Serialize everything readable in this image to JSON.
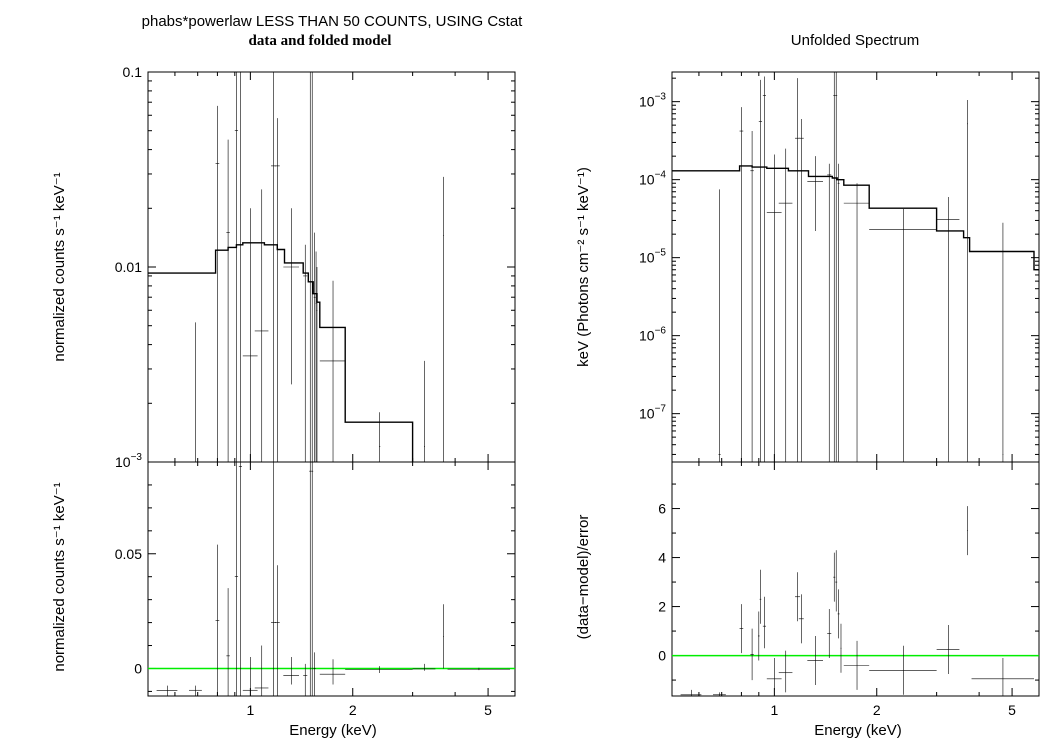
{
  "left": {
    "title": "phabs*powerlaw LESS THAN 50 COUNTS, USING Cstat",
    "subtitle": "data and folded model",
    "top_ylabel": "normalized counts s⁻¹ keV⁻¹",
    "bottom_ylabel": "normalized counts s⁻¹ keV⁻¹",
    "xlabel": "Energy (keV)"
  },
  "right": {
    "title": "Unfolded Spectrum",
    "top_ylabel": "keV (Photons cm⁻² s⁻¹ keV⁻¹)",
    "bottom_ylabel": "(data−model)/error",
    "xlabel": "Energy (keV)"
  },
  "chart_data": [
    {
      "type": "scatter",
      "panel": "left-top",
      "title": "phabs*powerlaw LESS THAN 50 COUNTS, USING Cstat",
      "subtitle": "data and folded model",
      "xlabel": "",
      "ylabel": "normalized counts s⁻¹ keV⁻¹",
      "xscale": "log",
      "yscale": "log",
      "xlim": [
        0.5,
        6.0
      ],
      "ylim": [
        0.001,
        0.1
      ],
      "yticks": [
        {
          "v": 0.1,
          "label": "0.1"
        },
        {
          "v": 0.01,
          "label": "0.01"
        },
        {
          "v": 0.001,
          "label": "10",
          "sup": "−3"
        }
      ],
      "points": [
        {
          "x": 0.69,
          "x0": 0.685,
          "x1": 0.695,
          "y": 0.0009,
          "ylo": 0.0005,
          "yhi": 0.0052
        },
        {
          "x": 0.8,
          "x0": 0.79,
          "x1": 0.81,
          "y": 0.034,
          "ylo": 0.0005,
          "yhi": 0.067
        },
        {
          "x": 0.86,
          "x0": 0.85,
          "x1": 0.87,
          "y": 0.015,
          "ylo": 0.0005,
          "yhi": 0.045
        },
        {
          "x": 0.91,
          "x0": 0.9,
          "x1": 0.92,
          "y": 0.05,
          "ylo": 0.0005,
          "yhi": 0.1
        },
        {
          "x": 0.935,
          "x0": 0.925,
          "x1": 0.945,
          "y": 0.1,
          "ylo": 0.0005,
          "yhi": 0.12
        },
        {
          "x": 1.0,
          "x0": 0.95,
          "x1": 1.05,
          "y": 0.0035,
          "ylo": 0.0005,
          "yhi": 0.02
        },
        {
          "x": 1.08,
          "x0": 1.03,
          "x1": 1.13,
          "y": 0.0047,
          "ylo": 0.0005,
          "yhi": 0.025
        },
        {
          "x": 1.17,
          "x0": 1.15,
          "x1": 1.19,
          "y": 0.033,
          "ylo": 0.0005,
          "yhi": 0.1
        },
        {
          "x": 1.2,
          "x0": 1.18,
          "x1": 1.22,
          "y": 0.033,
          "ylo": 0.0005,
          "yhi": 0.058
        },
        {
          "x": 1.32,
          "x0": 1.25,
          "x1": 1.39,
          "y": 0.01,
          "ylo": 0.0025,
          "yhi": 0.02
        },
        {
          "x": 1.45,
          "x0": 1.43,
          "x1": 1.47,
          "y": 0.009,
          "ylo": 0.0005,
          "yhi": 0.013
        },
        {
          "x": 1.5,
          "x0": 1.49,
          "x1": 1.51,
          "y": 0.1,
          "ylo": 0.0005,
          "yhi": 0.12
        },
        {
          "x": 1.52,
          "x0": 1.51,
          "x1": 1.53,
          "y": 0.1,
          "ylo": 0.0005,
          "yhi": 0.12
        },
        {
          "x": 1.545,
          "x0": 1.535,
          "x1": 1.555,
          "y": 0.007,
          "ylo": 0.0005,
          "yhi": 0.015
        },
        {
          "x": 1.56,
          "x0": 1.555,
          "x1": 1.565,
          "y": 0.0065,
          "ylo": 0.0005,
          "yhi": 0.012
        },
        {
          "x": 1.57,
          "x0": 1.565,
          "x1": 1.575,
          "y": 0.006,
          "ylo": 0.0005,
          "yhi": 0.01
        },
        {
          "x": 1.75,
          "x0": 1.6,
          "x1": 1.9,
          "y": 0.0033,
          "ylo": 0.0005,
          "yhi": 0.0085
        },
        {
          "x": 2.4,
          "x0": 2.39,
          "x1": 2.41,
          "y": 0.0012,
          "ylo": 0.0005,
          "yhi": 0.0018
        },
        {
          "x": 3.25,
          "x0": 3.24,
          "x1": 3.26,
          "y": 0.0012,
          "ylo": 0.0005,
          "yhi": 0.0033
        },
        {
          "x": 3.7,
          "x0": 3.69,
          "x1": 3.71,
          "y": 0.0145,
          "ylo": 0.0005,
          "yhi": 0.029
        }
      ],
      "model_steps": [
        [
          0.5,
          0.0093
        ],
        [
          0.79,
          0.0093
        ],
        [
          0.79,
          0.0122
        ],
        [
          0.86,
          0.0122
        ],
        [
          0.86,
          0.0126
        ],
        [
          0.91,
          0.0126
        ],
        [
          0.91,
          0.013
        ],
        [
          0.95,
          0.013
        ],
        [
          0.95,
          0.0133
        ],
        [
          1.1,
          0.0133
        ],
        [
          1.1,
          0.013
        ],
        [
          1.2,
          0.013
        ],
        [
          1.2,
          0.0123
        ],
        [
          1.26,
          0.0123
        ],
        [
          1.26,
          0.0105
        ],
        [
          1.43,
          0.0105
        ],
        [
          1.43,
          0.0093
        ],
        [
          1.48,
          0.0093
        ],
        [
          1.48,
          0.0084
        ],
        [
          1.53,
          0.0084
        ],
        [
          1.53,
          0.0073
        ],
        [
          1.57,
          0.0073
        ],
        [
          1.57,
          0.0066
        ],
        [
          1.6,
          0.0066
        ],
        [
          1.6,
          0.0049
        ],
        [
          1.9,
          0.0049
        ],
        [
          1.9,
          0.0016
        ],
        [
          3.0,
          0.0016
        ],
        [
          3.0,
          0.0009
        ]
      ]
    },
    {
      "type": "scatter",
      "panel": "left-bottom",
      "xlabel": "Energy (keV)",
      "ylabel": "normalized counts s⁻¹ keV⁻¹",
      "xscale": "log",
      "yscale": "linear",
      "xlim": [
        0.5,
        6.0
      ],
      "ylim": [
        -0.012,
        0.09
      ],
      "xticks": [
        {
          "v": 1,
          "label": "1"
        },
        {
          "v": 2,
          "label": "2"
        },
        {
          "v": 5,
          "label": "5"
        }
      ],
      "yticks": [
        {
          "v": 0,
          "label": "0"
        },
        {
          "v": 0.05,
          "label": "0.05"
        }
      ],
      "zero_line": 0,
      "points": [
        {
          "x": 0.57,
          "x0": 0.53,
          "x1": 0.61,
          "y": -0.0095,
          "ylo": -0.012,
          "yhi": -0.0075
        },
        {
          "x": 0.69,
          "x0": 0.66,
          "x1": 0.72,
          "y": -0.0095,
          "ylo": -0.012,
          "yhi": -0.0075
        },
        {
          "x": 0.8,
          "x0": 0.79,
          "x1": 0.81,
          "y": 0.021,
          "ylo": -0.012,
          "yhi": 0.054
        },
        {
          "x": 0.86,
          "x0": 0.85,
          "x1": 0.87,
          "y": 0.0055,
          "ylo": -0.012,
          "yhi": 0.035
        },
        {
          "x": 0.91,
          "x0": 0.9,
          "x1": 0.92,
          "y": 0.04,
          "ylo": -0.012,
          "yhi": 0.09
        },
        {
          "x": 0.935,
          "x0": 0.925,
          "x1": 0.945,
          "y": 0.088,
          "ylo": -0.012,
          "yhi": 0.09
        },
        {
          "x": 1.0,
          "x0": 0.95,
          "x1": 1.05,
          "y": -0.0095,
          "ylo": -0.012,
          "yhi": 0.005
        },
        {
          "x": 1.08,
          "x0": 1.03,
          "x1": 1.13,
          "y": -0.0085,
          "ylo": -0.012,
          "yhi": 0.01
        },
        {
          "x": 1.17,
          "x0": 1.15,
          "x1": 1.19,
          "y": 0.02,
          "ylo": -0.012,
          "yhi": 0.09
        },
        {
          "x": 1.2,
          "x0": 1.18,
          "x1": 1.22,
          "y": 0.02,
          "ylo": -0.012,
          "yhi": 0.045
        },
        {
          "x": 1.32,
          "x0": 1.25,
          "x1": 1.39,
          "y": -0.003,
          "ylo": -0.007,
          "yhi": 0.005
        },
        {
          "x": 1.45,
          "x0": 1.43,
          "x1": 1.47,
          "y": -0.003,
          "ylo": -0.012,
          "yhi": 0.002
        },
        {
          "x": 1.5,
          "x0": 1.49,
          "x1": 1.51,
          "y": 0.086,
          "ylo": -0.012,
          "yhi": 0.09
        },
        {
          "x": 1.52,
          "x0": 1.51,
          "x1": 1.53,
          "y": 0.086,
          "ylo": -0.012,
          "yhi": 0.09
        },
        {
          "x": 1.545,
          "x0": 1.535,
          "x1": 1.555,
          "y": 0.0,
          "ylo": -0.012,
          "yhi": 0.007
        },
        {
          "x": 1.75,
          "x0": 1.6,
          "x1": 1.9,
          "y": -0.0025,
          "ylo": -0.007,
          "yhi": 0.004
        },
        {
          "x": 2.4,
          "x0": 1.9,
          "x1": 3.0,
          "y": -0.0005,
          "ylo": -0.002,
          "yhi": 0.001
        },
        {
          "x": 3.25,
          "x0": 3.0,
          "x1": 3.5,
          "y": -0.0002,
          "ylo": -0.001,
          "yhi": 0.002
        },
        {
          "x": 3.7,
          "x0": 3.69,
          "x1": 3.71,
          "y": 0.014,
          "ylo": 0.0,
          "yhi": 0.028
        },
        {
          "x": 4.7,
          "x0": 3.8,
          "x1": 5.8,
          "y": -0.0003,
          "ylo": -0.0007,
          "yhi": 0.0003
        }
      ]
    },
    {
      "type": "scatter",
      "panel": "right-top",
      "title": "Unfolded Spectrum",
      "xlabel": "",
      "ylabel": "keV (Photons cm⁻² s⁻¹ keV⁻¹)",
      "xscale": "log",
      "yscale": "log",
      "xlim": [
        0.5,
        6.0
      ],
      "ylim": [
        2.4e-08,
        0.0024
      ],
      "yticks": [
        {
          "v": 0.001,
          "label": "10",
          "sup": "−3"
        },
        {
          "v": 0.0001,
          "label": "10",
          "sup": "−4"
        },
        {
          "v": 1e-05,
          "label": "10",
          "sup": "−5"
        },
        {
          "v": 1e-06,
          "label": "10",
          "sup": "−6"
        },
        {
          "v": 1e-07,
          "label": "10",
          "sup": "−7"
        }
      ],
      "points": [
        {
          "x": 0.69,
          "x0": 0.685,
          "x1": 0.695,
          "y": 3e-08,
          "ylo": 2.4e-08,
          "yhi": 7.5e-05
        },
        {
          "x": 0.8,
          "x0": 0.79,
          "x1": 0.81,
          "y": 0.00042,
          "ylo": 2.4e-08,
          "yhi": 0.00085
        },
        {
          "x": 0.86,
          "x0": 0.85,
          "x1": 0.87,
          "y": 0.00013,
          "ylo": 2.4e-08,
          "yhi": 0.00042
        },
        {
          "x": 0.91,
          "x0": 0.9,
          "x1": 0.92,
          "y": 0.00056,
          "ylo": 2.4e-08,
          "yhi": 0.0019
        },
        {
          "x": 0.935,
          "x0": 0.925,
          "x1": 0.945,
          "y": 0.0012,
          "ylo": 2.4e-08,
          "yhi": 0.0021
        },
        {
          "x": 1.0,
          "x0": 0.95,
          "x1": 1.05,
          "y": 3.8e-05,
          "ylo": 2.4e-08,
          "yhi": 0.00021
        },
        {
          "x": 1.08,
          "x0": 1.03,
          "x1": 1.13,
          "y": 5e-05,
          "ylo": 2.4e-08,
          "yhi": 0.00025
        },
        {
          "x": 1.17,
          "x0": 1.15,
          "x1": 1.19,
          "y": 0.00034,
          "ylo": 2.4e-08,
          "yhi": 0.002
        },
        {
          "x": 1.2,
          "x0": 1.18,
          "x1": 1.22,
          "y": 0.00034,
          "ylo": 2.4e-08,
          "yhi": 0.0006
        },
        {
          "x": 1.32,
          "x0": 1.25,
          "x1": 1.39,
          "y": 9.5e-05,
          "ylo": 2.2e-05,
          "yhi": 0.0002
        },
        {
          "x": 1.45,
          "x0": 1.43,
          "x1": 1.47,
          "y": 0.000115,
          "ylo": 2.4e-08,
          "yhi": 0.00016
        },
        {
          "x": 1.5,
          "x0": 1.49,
          "x1": 1.51,
          "y": 0.0012,
          "ylo": 2.4e-08,
          "yhi": 0.0024
        },
        {
          "x": 1.52,
          "x0": 1.51,
          "x1": 1.53,
          "y": 0.0012,
          "ylo": 2.4e-08,
          "yhi": 0.0024
        },
        {
          "x": 1.545,
          "x0": 1.535,
          "x1": 1.555,
          "y": 9e-05,
          "ylo": 2.4e-08,
          "yhi": 0.00016
        },
        {
          "x": 1.75,
          "x0": 1.6,
          "x1": 1.9,
          "y": 5e-05,
          "ylo": 2.4e-08,
          "yhi": 9e-05
        },
        {
          "x": 2.4,
          "x0": 1.9,
          "x1": 3.0,
          "y": 2.3e-05,
          "ylo": 2.4e-08,
          "yhi": 4.2e-05
        },
        {
          "x": 3.25,
          "x0": 3.0,
          "x1": 3.5,
          "y": 3.1e-05,
          "ylo": 2.4e-08,
          "yhi": 6e-05
        },
        {
          "x": 3.7,
          "x0": 3.69,
          "x1": 3.71,
          "y": 0.00052,
          "ylo": 2.4e-08,
          "yhi": 0.00105
        },
        {
          "x": 4.7,
          "x0": 4.69,
          "x1": 4.71,
          "y": 3e-08,
          "ylo": 2.4e-08,
          "yhi": 2.8e-05
        }
      ],
      "model_steps": [
        [
          0.5,
          0.00013
        ],
        [
          0.79,
          0.00013
        ],
        [
          0.79,
          0.00015
        ],
        [
          0.86,
          0.00015
        ],
        [
          0.86,
          0.000145
        ],
        [
          0.95,
          0.000145
        ],
        [
          0.95,
          0.00014
        ],
        [
          1.1,
          0.00014
        ],
        [
          1.1,
          0.00013
        ],
        [
          1.26,
          0.00013
        ],
        [
          1.26,
          0.00011
        ],
        [
          1.48,
          0.00011
        ],
        [
          1.48,
          0.000105
        ],
        [
          1.53,
          0.000105
        ],
        [
          1.53,
          0.0001
        ],
        [
          1.6,
          0.0001
        ],
        [
          1.6,
          8.5e-05
        ],
        [
          1.9,
          8.5e-05
        ],
        [
          1.9,
          4.3e-05
        ],
        [
          3.0,
          4.3e-05
        ],
        [
          3.0,
          2.2e-05
        ],
        [
          3.6,
          2.2e-05
        ],
        [
          3.6,
          1.8e-05
        ],
        [
          3.75,
          1.8e-05
        ],
        [
          3.75,
          1.2e-05
        ],
        [
          5.8,
          1.2e-05
        ],
        [
          5.8,
          7e-06
        ],
        [
          6.0,
          7e-06
        ]
      ]
    },
    {
      "type": "scatter",
      "panel": "right-bottom",
      "xlabel": "Energy (keV)",
      "ylabel": "(data−model)/error",
      "xscale": "log",
      "yscale": "linear",
      "xlim": [
        0.5,
        6.0
      ],
      "ylim": [
        -1.65,
        7.9
      ],
      "xticks": [
        {
          "v": 1,
          "label": "1"
        },
        {
          "v": 2,
          "label": "2"
        },
        {
          "v": 5,
          "label": "5"
        }
      ],
      "yticks": [
        {
          "v": 0,
          "label": "0"
        },
        {
          "v": 2,
          "label": "2"
        },
        {
          "v": 4,
          "label": "4"
        },
        {
          "v": 6,
          "label": "6"
        }
      ],
      "zero_line": 0,
      "points": [
        {
          "x": 0.57,
          "x0": 0.53,
          "x1": 0.61,
          "y": -1.6,
          "ylo": -1.65,
          "yhi": -1.4
        },
        {
          "x": 0.69,
          "x0": 0.66,
          "x1": 0.72,
          "y": -1.6,
          "ylo": -1.65,
          "yhi": -1.5
        },
        {
          "x": 0.8,
          "x0": 0.79,
          "x1": 0.81,
          "y": 1.1,
          "ylo": 0.1,
          "yhi": 2.1
        },
        {
          "x": 0.86,
          "x0": 0.85,
          "x1": 0.87,
          "y": 0.05,
          "ylo": -1.0,
          "yhi": 1.1
        },
        {
          "x": 0.9,
          "x0": 0.895,
          "x1": 0.905,
          "y": 0.8,
          "ylo": -0.2,
          "yhi": 1.8
        },
        {
          "x": 0.91,
          "x0": 0.905,
          "x1": 0.915,
          "y": 2.3,
          "ylo": 1.3,
          "yhi": 3.5
        },
        {
          "x": 0.935,
          "x0": 0.925,
          "x1": 0.945,
          "y": 1.2,
          "ylo": 0.3,
          "yhi": 2.4
        },
        {
          "x": 1.0,
          "x0": 0.95,
          "x1": 1.05,
          "y": -0.95,
          "ylo": -1.4,
          "yhi": -0.1
        },
        {
          "x": 1.08,
          "x0": 1.03,
          "x1": 1.13,
          "y": -0.7,
          "ylo": -1.5,
          "yhi": 0.2
        },
        {
          "x": 1.17,
          "x0": 1.15,
          "x1": 1.19,
          "y": 2.4,
          "ylo": 1.4,
          "yhi": 3.4
        },
        {
          "x": 1.2,
          "x0": 1.18,
          "x1": 1.22,
          "y": 1.5,
          "ylo": 0.5,
          "yhi": 2.5
        },
        {
          "x": 1.32,
          "x0": 1.25,
          "x1": 1.39,
          "y": -0.2,
          "ylo": -1.2,
          "yhi": 0.8
        },
        {
          "x": 1.45,
          "x0": 1.43,
          "x1": 1.47,
          "y": 0.9,
          "ylo": -0.1,
          "yhi": 1.9
        },
        {
          "x": 1.5,
          "x0": 1.49,
          "x1": 1.51,
          "y": 3.2,
          "ylo": 2.2,
          "yhi": 4.2
        },
        {
          "x": 1.52,
          "x0": 1.51,
          "x1": 1.53,
          "y": 3.0,
          "ylo": 1.8,
          "yhi": 4.3
        },
        {
          "x": 1.545,
          "x0": 1.535,
          "x1": 1.555,
          "y": 1.7,
          "ylo": 0.7,
          "yhi": 2.7
        },
        {
          "x": 1.57,
          "x0": 1.565,
          "x1": 1.575,
          "y": 0.3,
          "ylo": -0.7,
          "yhi": 1.3
        },
        {
          "x": 1.75,
          "x0": 1.6,
          "x1": 1.9,
          "y": -0.4,
          "ylo": -1.4,
          "yhi": 0.6
        },
        {
          "x": 2.4,
          "x0": 1.9,
          "x1": 3.0,
          "y": -0.6,
          "ylo": -1.6,
          "yhi": 0.4
        },
        {
          "x": 3.25,
          "x0": 3.0,
          "x1": 3.5,
          "y": 0.25,
          "ylo": -0.75,
          "yhi": 1.25
        },
        {
          "x": 3.7,
          "x0": 3.69,
          "x1": 3.71,
          "y": 5.1,
          "ylo": 4.1,
          "yhi": 6.1
        },
        {
          "x": 4.7,
          "x0": 3.8,
          "x1": 5.8,
          "y": -0.95,
          "ylo": -1.65,
          "yhi": -0.1
        }
      ]
    }
  ],
  "colors": {
    "data": "#000000",
    "model": "#000000",
    "zero_line": "#00ee00",
    "frame": "#000000"
  }
}
